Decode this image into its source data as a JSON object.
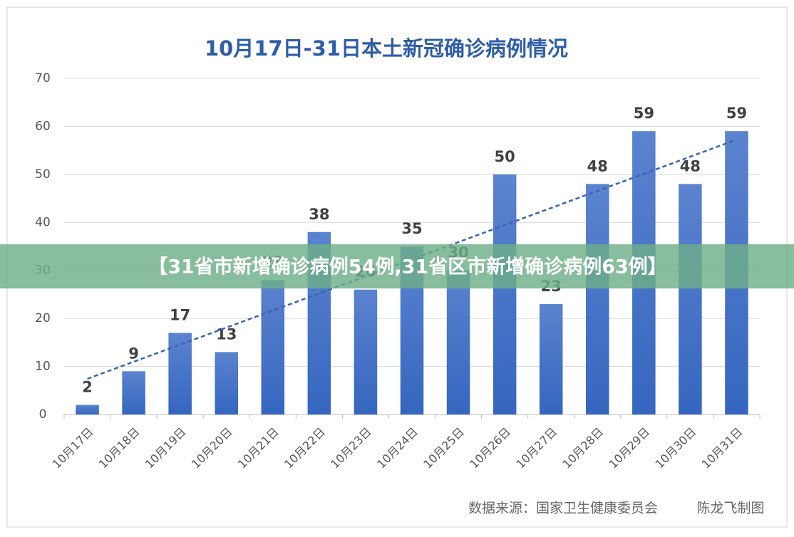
{
  "chart_data": {
    "type": "bar",
    "title": "10月17日-31日本土新冠确诊病例情况",
    "categories": [
      "10月17日",
      "10月18日",
      "10月19日",
      "10月20日",
      "10月21日",
      "10月22日",
      "10月23日",
      "10月24日",
      "10月25日",
      "10月26日",
      "10月27日",
      "10月28日",
      "10月29日",
      "10月30日",
      "10月31日"
    ],
    "values": [
      2,
      9,
      17,
      13,
      28,
      38,
      26,
      35,
      30,
      50,
      23,
      48,
      59,
      48,
      59
    ],
    "color": "#4472c4",
    "trendline": true,
    "ylim": [
      0,
      70
    ],
    "yticks": [
      0,
      10,
      20,
      30,
      40,
      50,
      60,
      70
    ],
    "grid": true,
    "source": "数据来源：国家卫生健康委员会",
    "author": "陈龙飞制图"
  },
  "banner": "【31省市新增确诊病例54例,31省区市新增确诊病例63例】"
}
